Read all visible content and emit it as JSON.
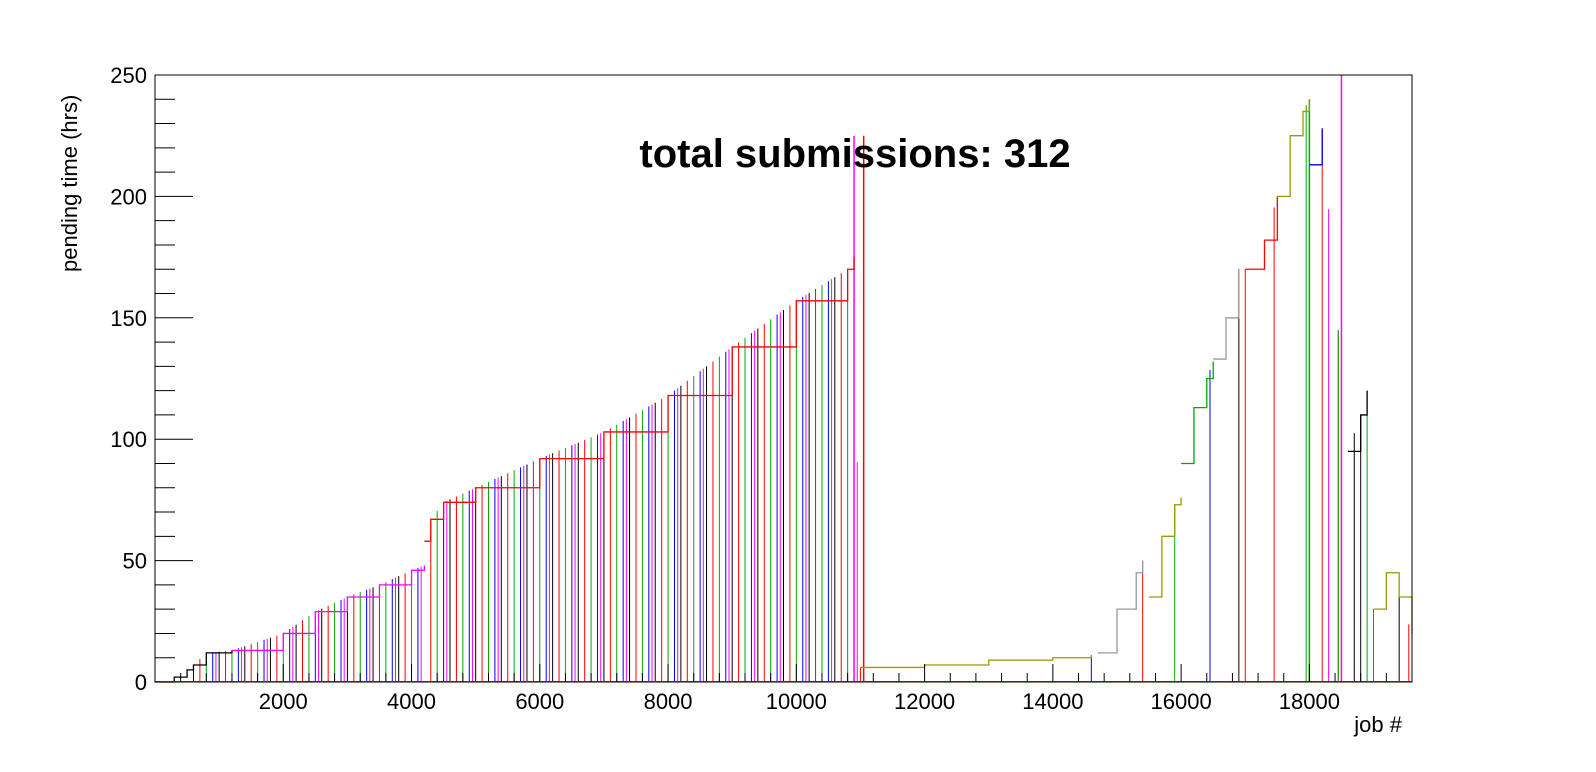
{
  "chart_data": {
    "type": "line",
    "title": "total submissions: 312",
    "xlabel": "job #",
    "ylabel": "pending time (hrs)",
    "xlim": [
      0,
      19600
    ],
    "ylim": [
      0,
      250
    ],
    "x_ticks": [
      "2000",
      "4000",
      "6000",
      "8000",
      "10000",
      "12000",
      "14000",
      "16000",
      "18000"
    ],
    "y_ticks": [
      "0",
      "50",
      "100",
      "150",
      "200",
      "250"
    ],
    "grid": false,
    "legend": "none",
    "colors": [
      "#000000",
      "#ff0000",
      "#00aa00",
      "#0000ff",
      "#ff00ff",
      "#999999",
      "#999900"
    ],
    "series": [
      {
        "color": "#000000",
        "x": [
          0,
          300,
          500,
          600,
          800,
          1200
        ],
        "y": [
          0,
          2,
          5,
          7,
          12,
          13
        ]
      },
      {
        "color": "#ff00ff",
        "x": [
          1200,
          2000,
          2500,
          3000,
          3500,
          4000,
          4200
        ],
        "y": [
          13,
          20,
          29,
          35,
          40,
          46,
          48
        ]
      },
      {
        "color": "#ff0000",
        "x": [
          4200,
          4300,
          4500,
          5000,
          6000,
          7000,
          8000,
          9000,
          10000,
          10800,
          10900
        ],
        "y": [
          58,
          67,
          74,
          80,
          92,
          103,
          118,
          138,
          157,
          170,
          175
        ]
      },
      {
        "color": "#999900",
        "x": [
          11000,
          12000,
          13000,
          14000,
          14600
        ],
        "y": [
          6,
          7,
          9,
          10,
          11
        ]
      },
      {
        "color": "#999999",
        "x": [
          14700,
          15000,
          15300,
          15400
        ],
        "y": [
          12,
          30,
          45,
          50
        ]
      },
      {
        "color": "#999900",
        "x": [
          15500,
          15700,
          15900,
          16000
        ],
        "y": [
          35,
          60,
          73,
          76
        ]
      },
      {
        "color": "#00aa00",
        "x": [
          16000,
          16200,
          16400,
          16500
        ],
        "y": [
          90,
          113,
          125,
          132
        ]
      },
      {
        "color": "#999999",
        "x": [
          16500,
          16700,
          16900
        ],
        "y": [
          133,
          150,
          170
        ]
      },
      {
        "color": "#ff0000",
        "x": [
          17000,
          17300,
          17500
        ],
        "y": [
          170,
          182,
          200
        ]
      },
      {
        "color": "#999900",
        "x": [
          17500,
          17700,
          17900,
          18000
        ],
        "y": [
          200,
          225,
          235,
          240
        ]
      },
      {
        "color": "#0000ff",
        "x": [
          18000,
          18200
        ],
        "y": [
          213,
          228
        ]
      },
      {
        "color": "#000000",
        "x": [
          18600,
          18800,
          18900
        ],
        "y": [
          95,
          110,
          120
        ]
      },
      {
        "color": "#999900",
        "x": [
          19000,
          19200,
          19400,
          19600
        ],
        "y": [
          30,
          45,
          35,
          20
        ]
      }
    ],
    "vertical_drops": [
      {
        "color": "#000000",
        "x": [
          600,
          1000,
          1400,
          1800,
          2200,
          2600,
          3000,
          3400,
          3800,
          4600,
          5000,
          5400,
          5800,
          6200,
          6600,
          7000,
          7400,
          7800,
          8200,
          8600,
          9000,
          9400,
          9800,
          10200,
          10600,
          16900,
          18700,
          18800,
          19400
        ]
      },
      {
        "color": "#ff0000",
        "x": [
          700,
          1100,
          1500,
          1900,
          2300,
          2700,
          3100,
          3500,
          3900,
          4300,
          4700,
          5100,
          5500,
          5900,
          6300,
          6700,
          7100,
          7500,
          7900,
          8300,
          8700,
          9100,
          9500,
          9900,
          10300,
          10700,
          11000,
          15400,
          17000,
          17450,
          18200,
          18450,
          19550
        ]
      },
      {
        "color": "#00aa00",
        "x": [
          800,
          1200,
          1600,
          2000,
          2400,
          2800,
          3200,
          3600,
          4000,
          4400,
          4800,
          5200,
          5600,
          6000,
          6400,
          6800,
          7200,
          7600,
          8000,
          8400,
          8800,
          9200,
          9600,
          10000,
          10400,
          10800,
          15900,
          17950,
          18000,
          18450,
          18900,
          19000
        ]
      },
      {
        "color": "#0000ff",
        "x": [
          900,
          1300,
          1700,
          2100,
          2500,
          2900,
          3300,
          3700,
          4100,
          4500,
          4900,
          5300,
          5700,
          6100,
          6500,
          6900,
          7300,
          7700,
          8100,
          8500,
          8900,
          9300,
          9700,
          10100,
          10500,
          10900,
          14600,
          16450
        ]
      },
      {
        "color": "#ff00ff",
        "x": [
          950,
          1350,
          1750,
          2150,
          2550,
          2950,
          3350,
          3750,
          4150,
          4550,
          4950,
          5350,
          5750,
          6150,
          6550,
          6950,
          7350,
          7750,
          8150,
          8550,
          8950,
          9350,
          9750,
          10150,
          10550,
          10950,
          18300,
          18500
        ]
      }
    ],
    "spikes": [
      {
        "color": "#ff00ff",
        "x": 10900,
        "y": 225
      },
      {
        "color": "#ff0000",
        "x": 11050,
        "y": 225
      },
      {
        "color": "#ff00ff",
        "x": 18500,
        "y": 250
      },
      {
        "color": "#00aa00",
        "x": 18000,
        "y": 240
      }
    ]
  }
}
